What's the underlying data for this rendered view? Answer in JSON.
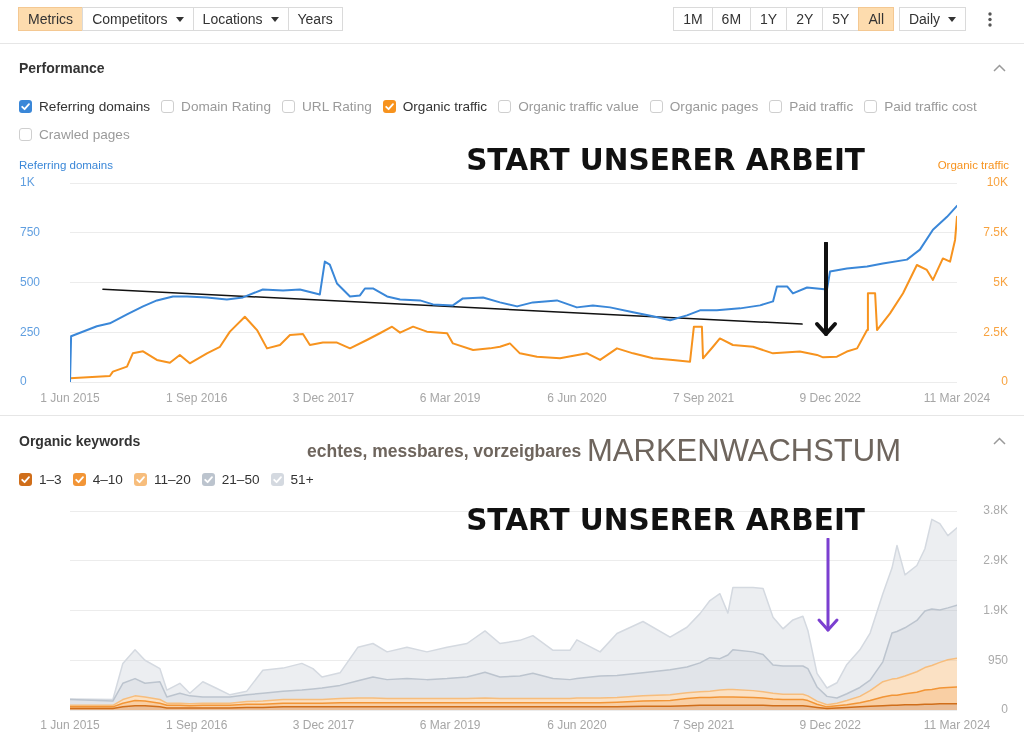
{
  "chart_data": [
    {
      "type": "other",
      "annotations": [
        "Metrics",
        "Competitors",
        "Locations",
        "Years",
        "1M",
        "6M",
        "1Y",
        "2Y",
        "5Y",
        "All",
        "Daily"
      ]
    },
    {
      "type": "line",
      "title": "Performance",
      "ylabel": "Referring domains",
      "y2label": "Organic traffic",
      "xlim": [
        "2015-06-01",
        "2024-03-11"
      ],
      "xticks": [
        {
          "value": "2015-06-01",
          "label": "1 Jun 2015"
        },
        {
          "value": "2016-09-01",
          "label": "1 Sep 2016"
        },
        {
          "value": "2017-12-03",
          "label": "3 Dec 2017"
        },
        {
          "value": "2019-03-06",
          "label": "6 Mar 2019"
        },
        {
          "value": "2020-06-06",
          "label": "6 Jun 2020"
        },
        {
          "value": "2021-09-07",
          "label": "7 Sep 2021"
        },
        {
          "value": "2022-12-09",
          "label": "9 Dec 2022"
        },
        {
          "value": "2024-03-11",
          "label": "11 Mar 2024"
        }
      ],
      "ylim": [
        0,
        1000
      ],
      "yticks": [
        0,
        250,
        500,
        750,
        {
          "value": 1000,
          "label": "1K"
        }
      ],
      "y2lim": [
        0,
        10000
      ],
      "y2ticks": [
        0,
        {
          "value": 2500,
          "label": "2.5K"
        },
        {
          "value": 5000,
          "label": "5K"
        },
        {
          "value": 7500,
          "label": "7.5K"
        },
        {
          "value": 10000,
          "label": "10K"
        }
      ],
      "grid": "y",
      "legend": "top left",
      "series": [
        {
          "name": "Referring domains",
          "color": "#3a87d8",
          "x": [
            "2015-06-01",
            "2015-06-05",
            "2015-09-06",
            "2015-10-23",
            "2015-12-24",
            "2016-02-20",
            "2016-04-10",
            "2016-06-07",
            "2016-07-28",
            "2016-10-08",
            "2016-12-19",
            "2017-02-15",
            "2017-04-28",
            "2017-07-10",
            "2017-09-09",
            "2017-11-20",
            "2017-12-08",
            "2017-12-26",
            "2018-01-21",
            "2018-03-09",
            "2018-04-14",
            "2018-05-02",
            "2018-05-31",
            "2018-07-21",
            "2018-09-06",
            "2018-11-17",
            "2019-01-03",
            "2019-03-16",
            "2019-04-21",
            "2019-07-03",
            "2019-09-02",
            "2019-11-03",
            "2019-12-30",
            "2020-03-26",
            "2020-06-06",
            "2020-08-03",
            "2020-10-04",
            "2020-12-26",
            "2021-03-08",
            "2021-05-09",
            "2021-07-09",
            "2021-08-25",
            "2021-10-25",
            "2022-01-17",
            "2022-03-30",
            "2022-05-16",
            "2022-05-30",
            "2022-07-06",
            "2022-07-27",
            "2022-09-16",
            "2022-11-27",
            "2022-12-08",
            "2023-02-07",
            "2023-04-21",
            "2023-06-17",
            "2023-09-12",
            "2023-10-29",
            "2023-12-15",
            "2024-02-04",
            "2024-03-11"
          ],
          "values": [
            0,
            230,
            280,
            295,
            340,
            380,
            410,
            430,
            430,
            425,
            415,
            425,
            465,
            460,
            465,
            440,
            605,
            590,
            495,
            430,
            435,
            470,
            470,
            430,
            415,
            410,
            390,
            385,
            420,
            425,
            400,
            380,
            400,
            410,
            375,
            385,
            375,
            350,
            330,
            310,
            335,
            360,
            360,
            370,
            385,
            405,
            480,
            480,
            445,
            475,
            465,
            555,
            570,
            580,
            595,
            615,
            665,
            765,
            830,
            885
          ]
        },
        {
          "name": "Organic traffic",
          "color": "#f7931e",
          "axis": "y2",
          "x": [
            "2015-06-01",
            "2015-10-23",
            "2015-11-03",
            "2015-12-24",
            "2016-01-14",
            "2016-02-20",
            "2016-04-10",
            "2016-05-27",
            "2016-07-02",
            "2016-08-07",
            "2016-10-08",
            "2016-11-24",
            "2016-12-30",
            "2017-02-22",
            "2017-04-07",
            "2017-05-13",
            "2017-06-29",
            "2017-08-04",
            "2017-09-20",
            "2017-10-15",
            "2017-12-01",
            "2018-01-21",
            "2018-03-09",
            "2018-05-09",
            "2018-06-25",
            "2018-08-08",
            "2018-09-06",
            "2018-10-23",
            "2018-12-12",
            "2019-02-23",
            "2019-03-16",
            "2019-05-28",
            "2019-07-28",
            "2019-09-02",
            "2019-10-08",
            "2019-11-13",
            "2020-01-14",
            "2020-04-06",
            "2020-07-13",
            "2020-08-29",
            "2020-10-29",
            "2020-12-26",
            "2021-03-08",
            "2021-05-19",
            "2021-07-20",
            "2021-08-03",
            "2021-09-01",
            "2021-09-05",
            "2021-10-11",
            "2021-11-05",
            "2021-12-22",
            "2022-03-05",
            "2022-05-16",
            "2022-08-21",
            "2022-10-22",
            "2022-11-13",
            "2023-01-02",
            "2023-02-07",
            "2023-03-16",
            "2023-04-21",
            "2023-04-24",
            "2023-05-20",
            "2023-05-27",
            "2023-07-13",
            "2023-08-29",
            "2023-10-18",
            "2023-11-23",
            "2023-12-15",
            "2024-01-20",
            "2024-02-15",
            "2024-03-04",
            "2024-03-11"
          ],
          "values": [
            190,
            300,
            520,
            770,
            1440,
            1540,
            1110,
            970,
            1360,
            940,
            1440,
            1770,
            2530,
            3280,
            2610,
            1690,
            1860,
            2360,
            2410,
            1860,
            1980,
            1980,
            1690,
            2110,
            2450,
            2780,
            2480,
            2780,
            2530,
            2450,
            1940,
            1610,
            1690,
            1770,
            1940,
            1440,
            1270,
            1190,
            1440,
            1110,
            1690,
            1440,
            1190,
            1110,
            1020,
            2780,
            2780,
            1190,
            1770,
            2190,
            1860,
            1770,
            1440,
            1530,
            1360,
            1240,
            1270,
            1530,
            1690,
            2610,
            4460,
            4460,
            2610,
            3450,
            4460,
            5880,
            5630,
            5130,
            6210,
            6050,
            7140,
            8310
          ]
        },
        {
          "type": "line",
          "color": "#111111",
          "x": [
            "2015-09-28",
            "2022-08-29"
          ],
          "values": [
            466,
            291
          ]
        }
      ],
      "annotations": [
        "START UNSERER ARBEIT",
        "Domain Rating",
        "URL Rating",
        "Organic traffic value",
        "Organic pages",
        "Paid traffic",
        "Paid traffic cost",
        "Crawled pages"
      ]
    },
    {
      "type": "area",
      "stacked": true,
      "title": "Organic keywords",
      "x": [
        "2015-06-01",
        "2015-11-03",
        "2015-12-09",
        "2016-01-22",
        "2016-02-27",
        "2016-04-21",
        "2016-05-16",
        "2016-07-02",
        "2016-08-07",
        "2016-09-23",
        "2016-11-13",
        "2016-12-30",
        "2017-03-01",
        "2017-04-28",
        "2017-07-10",
        "2017-09-16",
        "2017-10-26",
        "2017-11-28",
        "2018-02-01",
        "2018-04-07",
        "2018-05-31",
        "2018-07-21",
        "2018-10-01",
        "2018-12-12",
        "2019-02-23",
        "2019-05-06",
        "2019-07-10",
        "2019-09-02",
        "2019-11-13",
        "2019-12-30",
        "2020-03-12",
        "2020-05-12",
        "2020-06-06",
        "2020-08-29",
        "2020-10-29",
        "2021-01-31",
        "2021-05-09",
        "2021-07-09",
        "2021-08-25",
        "2021-09-30",
        "2021-11-05",
        "2021-12-04",
        "2021-12-22",
        "2022-03-05",
        "2022-04-10",
        "2022-05-16",
        "2022-06-21",
        "2022-07-27",
        "2022-09-01",
        "2022-09-19",
        "2022-10-22",
        "2022-11-27",
        "2023-01-02",
        "2023-02-07",
        "2023-03-26",
        "2023-05-02",
        "2023-06-17",
        "2023-07-20",
        "2023-08-07",
        "2023-09-05",
        "2023-10-18",
        "2023-11-16",
        "2023-12-11",
        "2024-01-09",
        "2024-02-07",
        "2024-03-11"
      ],
      "xlim": [
        "2015-06-01",
        "2024-03-11"
      ],
      "xticks": [
        {
          "value": "2015-06-01",
          "label": "1 Jun 2015"
        },
        {
          "value": "2016-09-01",
          "label": "1 Sep 2016"
        },
        {
          "value": "2017-12-03",
          "label": "3 Dec 2017"
        },
        {
          "value": "2019-03-06",
          "label": "6 Mar 2019"
        },
        {
          "value": "2020-06-06",
          "label": "6 Jun 2020"
        },
        {
          "value": "2021-09-07",
          "label": "7 Sep 2021"
        },
        {
          "value": "2022-12-09",
          "label": "9 Dec 2022"
        },
        {
          "value": "2024-03-11",
          "label": "11 Mar 2024"
        }
      ],
      "ylim": [
        0,
        3800
      ],
      "yticks": [
        0,
        950,
        {
          "value": 1900,
          "label": "1.9K"
        },
        {
          "value": 2850,
          "label": "2.9K"
        },
        {
          "value": 3800,
          "label": "3.8K"
        }
      ],
      "grid": "y",
      "legend": "top left",
      "series": [
        {
          "name": "1–3",
          "color": "#d06e1a",
          "values": [
            30,
            30,
            60,
            80,
            80,
            60,
            40,
            40,
            40,
            40,
            40,
            40,
            50,
            50,
            60,
            60,
            60,
            60,
            60,
            60,
            60,
            60,
            60,
            60,
            60,
            60,
            60,
            60,
            60,
            60,
            60,
            60,
            60,
            60,
            60,
            70,
            70,
            80,
            90,
            90,
            90,
            90,
            90,
            90,
            90,
            80,
            80,
            80,
            80,
            70,
            50,
            30,
            40,
            50,
            60,
            70,
            80,
            90,
            90,
            100,
            100,
            110,
            110,
            120,
            120,
            120
          ]
        },
        {
          "name": "4–10",
          "color": "#f29536",
          "values": [
            30,
            30,
            70,
            100,
            90,
            70,
            50,
            50,
            40,
            50,
            50,
            50,
            60,
            60,
            70,
            70,
            70,
            70,
            80,
            80,
            80,
            80,
            80,
            80,
            80,
            80,
            80,
            80,
            80,
            80,
            80,
            80,
            80,
            80,
            90,
            100,
            110,
            140,
            150,
            150,
            160,
            160,
            160,
            150,
            140,
            130,
            120,
            120,
            120,
            110,
            60,
            30,
            40,
            50,
            80,
            110,
            170,
            190,
            190,
            210,
            240,
            270,
            280,
            300,
            310,
            320
          ]
        },
        {
          "name": "11–20",
          "color": "#f7bd7c",
          "values": [
            30,
            30,
            70,
            90,
            80,
            70,
            40,
            40,
            40,
            40,
            40,
            40,
            50,
            60,
            70,
            70,
            70,
            70,
            80,
            90,
            90,
            80,
            80,
            80,
            80,
            80,
            90,
            80,
            80,
            80,
            80,
            80,
            90,
            90,
            90,
            100,
            110,
            110,
            110,
            120,
            130,
            140,
            140,
            130,
            120,
            110,
            100,
            100,
            100,
            90,
            60,
            40,
            50,
            80,
            120,
            190,
            290,
            310,
            320,
            340,
            390,
            430,
            460,
            490,
            530,
            550
          ]
        },
        {
          "name": "21–50",
          "color": "#bcc4ce",
          "values": [
            110,
            80,
            310,
            330,
            260,
            340,
            120,
            190,
            150,
            120,
            120,
            120,
            130,
            150,
            160,
            180,
            200,
            220,
            250,
            330,
            400,
            360,
            380,
            360,
            380,
            410,
            490,
            410,
            430,
            480,
            380,
            360,
            370,
            420,
            420,
            440,
            480,
            490,
            550,
            640,
            600,
            660,
            760,
            740,
            710,
            540,
            540,
            540,
            540,
            520,
            270,
            160,
            100,
            130,
            170,
            200,
            380,
            880,
            900,
            920,
            980,
            1080,
            1080,
            1000,
            990,
            1010
          ]
        },
        {
          "name": "51+",
          "color": "#d4d9e0",
          "values": [
            10,
            30,
            380,
            550,
            440,
            250,
            130,
            190,
            50,
            290,
            160,
            40,
            70,
            440,
            440,
            510,
            390,
            210,
            240,
            640,
            640,
            530,
            600,
            530,
            600,
            640,
            790,
            640,
            680,
            720,
            540,
            560,
            740,
            460,
            800,
            980,
            620,
            760,
            940,
            1090,
            1240,
            800,
            1190,
            1230,
            1260,
            910,
            710,
            880,
            950,
            730,
            260,
            160,
            290,
            560,
            720,
            900,
            1300,
            1240,
            1640,
            1010,
            1050,
            1190,
            1710,
            1650,
            1380,
            1480
          ]
        }
      ],
      "annotations": [
        "echtes, messbares, vorzeigbares",
        "MARKENWACHSTUM",
        "START UNSERER ARBEIT"
      ]
    }
  ]
}
